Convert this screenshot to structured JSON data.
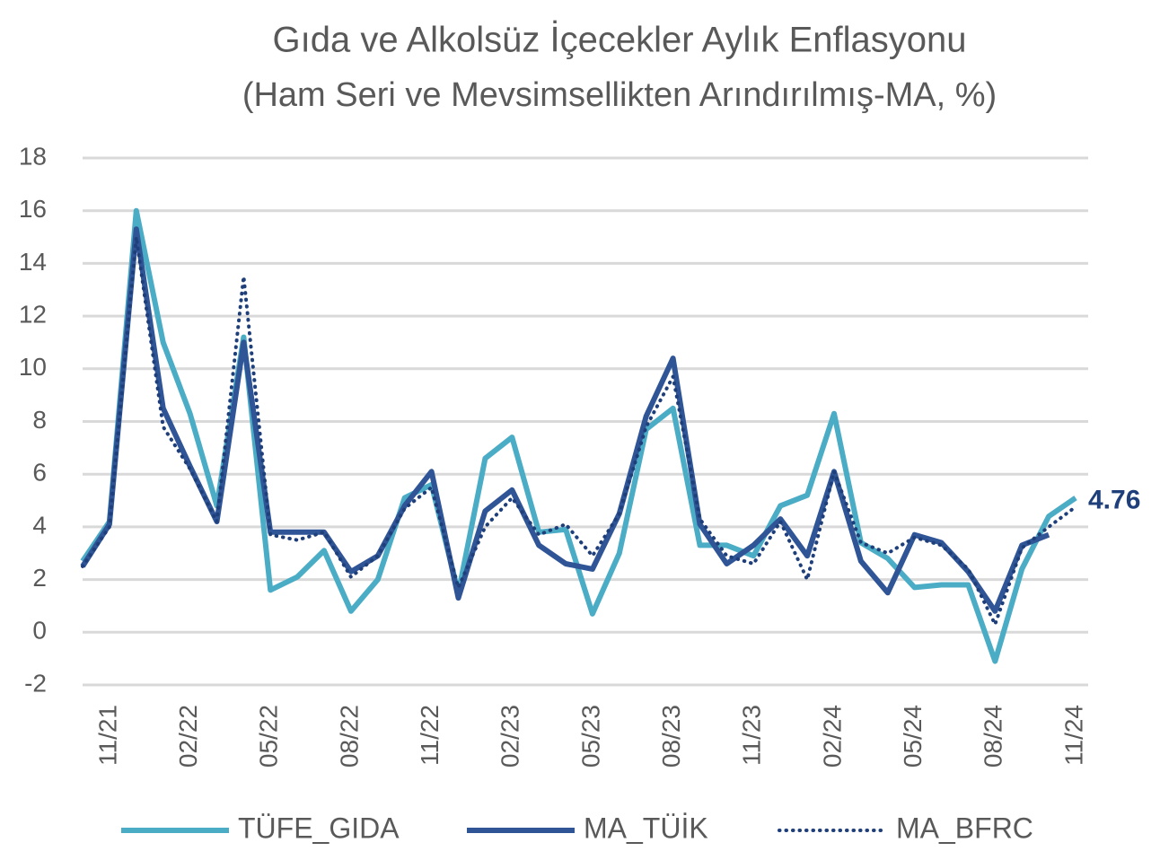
{
  "chart_data": {
    "type": "line",
    "title": "Gıda ve Alkolsüz İçecekler Aylık Enflasyonu",
    "subtitle": "(Ham Seri ve Mevsimsellikten Arındırılmış-MA, %)",
    "categories": [
      null,
      "11/21",
      null,
      null,
      "02/22",
      null,
      null,
      "05/22",
      null,
      null,
      "08/22",
      null,
      null,
      "11/22",
      null,
      null,
      "02/23",
      null,
      null,
      "05/23",
      null,
      null,
      "08/23",
      null,
      null,
      "11/23",
      null,
      null,
      "02/24",
      null,
      null,
      "05/24",
      null,
      null,
      "08/24",
      null,
      null,
      "11/24"
    ],
    "series": [
      {
        "name": "TÜFE_GIDA",
        "color": "#4bacc6",
        "style": "solid",
        "values": [
          2.7,
          4.2,
          16.0,
          11.0,
          8.3,
          4.8,
          11.2,
          1.6,
          2.1,
          3.1,
          0.8,
          2.0,
          5.1,
          5.6,
          1.5,
          6.6,
          7.4,
          3.8,
          3.9,
          0.7,
          3.0,
          7.7,
          8.5,
          3.3,
          3.3,
          2.9,
          4.8,
          5.2,
          8.3,
          3.4,
          2.8,
          1.7,
          1.8,
          1.8,
          -1.1,
          2.4,
          4.4,
          5.1
        ]
      },
      {
        "name": "MA_TÜİK",
        "color": "#2f5597",
        "style": "solid",
        "values": [
          2.5,
          4.1,
          15.3,
          8.5,
          6.3,
          4.2,
          11.0,
          3.8,
          3.8,
          3.8,
          2.3,
          2.9,
          4.8,
          6.1,
          1.3,
          4.6,
          5.4,
          3.3,
          2.6,
          2.4,
          4.5,
          8.2,
          10.4,
          4.1,
          2.6,
          3.3,
          4.3,
          2.9,
          6.1,
          2.7,
          1.5,
          3.7,
          3.4,
          2.3,
          0.8,
          3.3,
          3.7,
          null
        ]
      },
      {
        "name": "MA_BFRC",
        "color": "#1f3f7a",
        "style": "dotted",
        "values": [
          2.5,
          4.0,
          15.0,
          7.8,
          6.2,
          4.2,
          13.5,
          3.7,
          3.5,
          3.8,
          2.1,
          2.9,
          4.7,
          5.5,
          1.7,
          4.0,
          5.1,
          3.7,
          4.1,
          2.9,
          4.5,
          7.8,
          9.7,
          4.3,
          2.9,
          2.6,
          4.2,
          2.0,
          6.1,
          3.4,
          3.0,
          3.6,
          3.3,
          2.4,
          0.3,
          3.2,
          4.0,
          4.76
        ]
      }
    ],
    "ylim": [
      -2,
      18
    ],
    "yticks": [
      -2,
      0,
      2,
      4,
      6,
      8,
      10,
      12,
      14,
      16,
      18
    ],
    "grid": true,
    "legend": "bottom"
  }
}
